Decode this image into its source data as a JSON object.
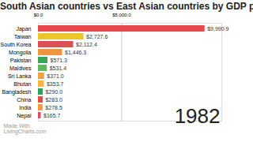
{
  "chart_data": {
    "type": "bar",
    "orientation": "horizontal",
    "title": "South Asian countries vs East Asian countries by GDP per capita",
    "categories": [
      "Japan",
      "Taiwan",
      "South Korea",
      "Mongolia",
      "Pakistan",
      "Maldives",
      "Sri Lanka",
      "Bhutan",
      "Bangladesh",
      "China",
      "India",
      "Nepal"
    ],
    "values": [
      9990.9,
      2727.6,
      2112.4,
      1446.3,
      571.3,
      531.4,
      371.0,
      353.7,
      290.0,
      283.0,
      278.5,
      165.7
    ],
    "value_labels": [
      "$9,990.9",
      "$2,727.6",
      "$2,112.4",
      "$1,446.3",
      "$571.3",
      "$531.4",
      "$371.0",
      "$353.7",
      "$290.0",
      "$283.0",
      "$278.5",
      "$165.7"
    ],
    "colors": [
      "#e8474c",
      "#f2c12e",
      "#d9534f",
      "#f0953a",
      "#3aa655",
      "#5cb85c",
      "#f0a04b",
      "#f6b73c",
      "#2e9e5b",
      "#e04a3f",
      "#f39c3d",
      "#d94f5c"
    ],
    "xlim": [
      0,
      11000
    ],
    "xticks": [
      {
        "value": 0,
        "label": "$0.0"
      },
      {
        "value": 5000,
        "label": "$5,000.0"
      }
    ],
    "grid": true,
    "data_labels": true,
    "annotations": [
      "1982",
      "Made With\nLivingCharts.com"
    ]
  }
}
